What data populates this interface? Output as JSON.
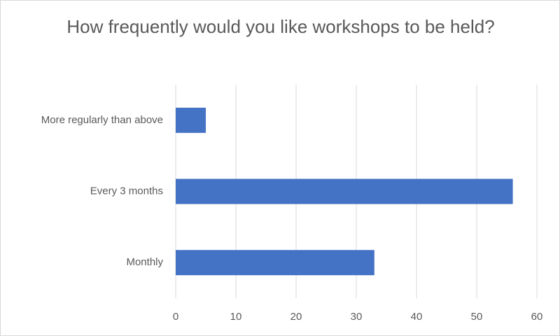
{
  "chart_data": {
    "type": "bar",
    "orientation": "horizontal",
    "title": "How frequently would you like workshops to be held?",
    "categories": [
      "More regularly than above",
      "Every 3 months",
      "Monthly"
    ],
    "values": [
      5,
      56,
      33
    ],
    "color": "#4472c4",
    "xlim": [
      0,
      60
    ],
    "xticks": [
      0,
      10,
      20,
      30,
      40,
      50,
      60
    ],
    "grid": true
  }
}
